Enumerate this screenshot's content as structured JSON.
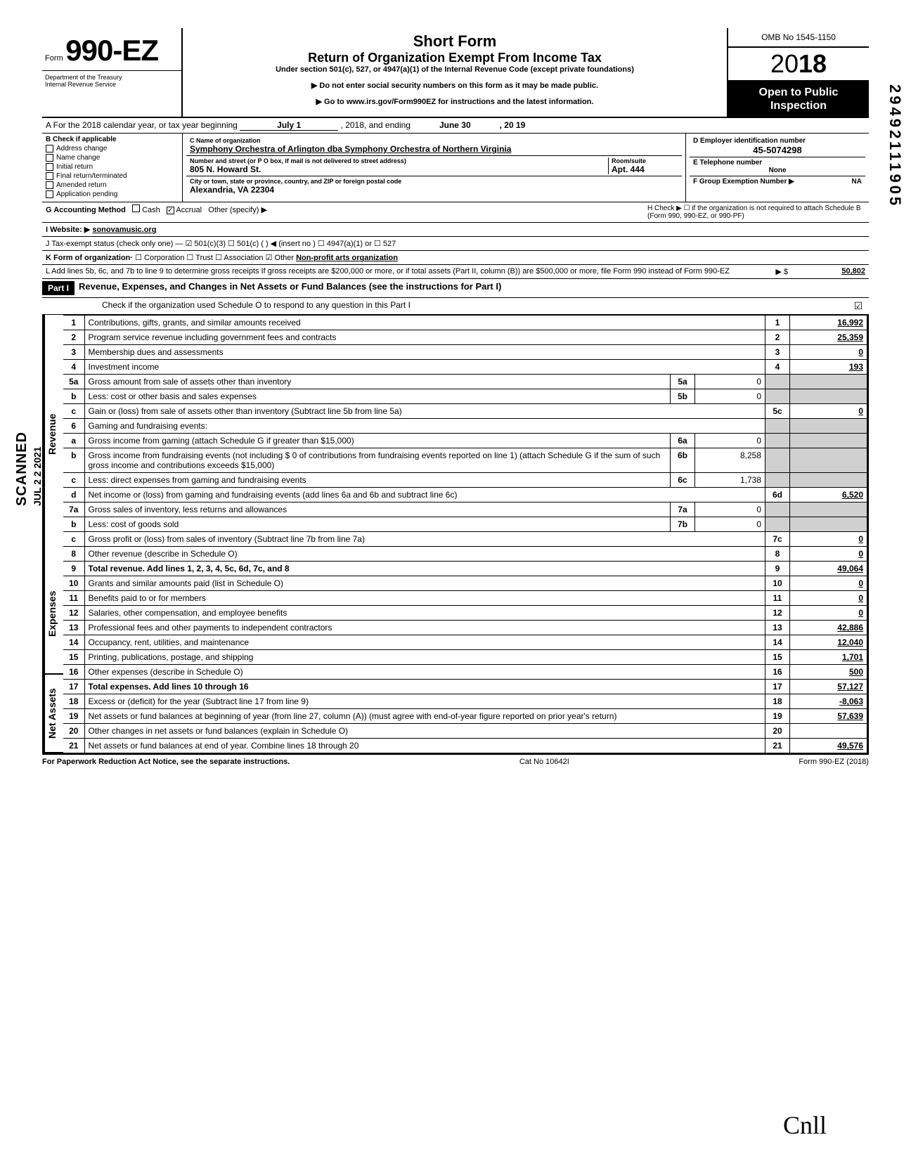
{
  "header": {
    "form_word": "Form",
    "form_number": "990-EZ",
    "title": "Short Form",
    "subtitle": "Return of Organization Exempt From Income Tax",
    "under": "Under section 501(c), 527, or 4947(a)(1) of the Internal Revenue Code (except private foundations)",
    "note1": "▶ Do not enter social security numbers on this form as it may be made public.",
    "note2": "▶ Go to www.irs.gov/Form990EZ for instructions and the latest information.",
    "dept": "Department of the Treasury\nInternal Revenue Service",
    "omb": "OMB No 1545-1150",
    "year_light": "20",
    "year_bold": "18",
    "open": "Open to Public Inspection"
  },
  "lineA": {
    "prefix": "A For the 2018 calendar year, or tax year beginning",
    "begin": "July 1",
    "mid": ", 2018, and ending",
    "end_month": "June 30",
    "end_year": ", 20   19"
  },
  "sectionB": {
    "header": "B Check if applicable",
    "items": [
      "Address change",
      "Name change",
      "Initial return",
      "Final return/terminated",
      "Amended return",
      "Application pending"
    ]
  },
  "entity": {
    "c_label": "C Name of organization",
    "name": "Symphony Orchestra of Arlington dba Symphony Orchestra of Northern Virginia",
    "addr_label": "Number and street (or P O box, if mail is not delivered to street address)",
    "street": "805 N. Howard St.",
    "room_label": "Room/suite",
    "room": "Apt. 444",
    "city_label": "City or town, state or province, country, and ZIP or foreign postal code",
    "city": "Alexandria, VA 22304"
  },
  "rightInfo": {
    "d_label": "D Employer identification number",
    "ein": "45-5074298",
    "e_label": "E Telephone number",
    "phone": "None",
    "f_label": "F Group Exemption Number ▶",
    "f_val": "NA"
  },
  "lineG": {
    "label": "G Accounting Method",
    "cash": "Cash",
    "accrual": "Accrual",
    "other": "Other (specify) ▶"
  },
  "lineH": "H Check ▶ ☐ if the organization is not required to attach Schedule B (Form 990, 990-EZ, or 990-PF)",
  "lineI": {
    "label": "I Website: ▶",
    "val": "sonovamusic.org"
  },
  "lineJ": "J Tax-exempt status (check only one) — ☑ 501(c)(3)   ☐ 501(c) (      ) ◀ (insert no ) ☐ 4947(a)(1) or   ☐ 527",
  "lineK": {
    "label": "K Form of organization·",
    "opts": "☐ Corporation   ☐ Trust   ☐ Association   ☑ Other",
    "other_val": "Non-profit arts organization"
  },
  "lineL": {
    "text": "L Add lines 5b, 6c, and 7b to line 9 to determine gross receipts  If gross receipts are $200,000 or more, or if total assets (Part II, column (B)) are $500,000 or more, file Form 990 instead of Form 990-EZ",
    "arrow": "▶  $",
    "val": "50,802"
  },
  "part1": {
    "label": "Part I",
    "title": "Revenue, Expenses, and Changes in Net Assets or Fund Balances (see the instructions for Part I)",
    "check": "Check if the organization used Schedule O to respond to any question in this Part I",
    "checked": "☑"
  },
  "sections": {
    "revenue": "Revenue",
    "expenses": "Expenses",
    "netassets": "Net Assets"
  },
  "lines": [
    {
      "n": "1",
      "d": "Contributions, gifts, grants, and similar amounts received",
      "box": "1",
      "v": "16,992"
    },
    {
      "n": "2",
      "d": "Program service revenue including government fees and contracts",
      "box": "2",
      "v": "25,359"
    },
    {
      "n": "3",
      "d": "Membership dues and assessments",
      "box": "3",
      "v": "0"
    },
    {
      "n": "4",
      "d": "Investment income",
      "box": "4",
      "v": "193"
    },
    {
      "n": "5a",
      "d": "Gross amount from sale of assets other than inventory",
      "mb": "5a",
      "mv": "0"
    },
    {
      "n": "b",
      "d": "Less: cost or other basis and sales expenses",
      "mb": "5b",
      "mv": "0"
    },
    {
      "n": "c",
      "d": "Gain or (loss) from sale of assets other than inventory (Subtract line 5b from line 5a)",
      "box": "5c",
      "v": "0"
    },
    {
      "n": "6",
      "d": "Gaming and fundraising events:"
    },
    {
      "n": "a",
      "d": "Gross income from gaming (attach Schedule G if greater than $15,000)",
      "mb": "6a",
      "mv": "0"
    },
    {
      "n": "b",
      "d": "Gross income from fundraising events (not including  $                0 of contributions from fundraising events reported on line 1) (attach Schedule G if the sum of such gross income and contributions exceeds $15,000)",
      "mb": "6b",
      "mv": "8,258"
    },
    {
      "n": "c",
      "d": "Less: direct expenses from gaming and fundraising events",
      "mb": "6c",
      "mv": "1,738"
    },
    {
      "n": "d",
      "d": "Net income or (loss) from gaming and fundraising events (add lines 6a and 6b and subtract line 6c)",
      "box": "6d",
      "v": "6,520"
    },
    {
      "n": "7a",
      "d": "Gross sales of inventory, less returns and allowances",
      "mb": "7a",
      "mv": "0"
    },
    {
      "n": "b",
      "d": "Less: cost of goods sold",
      "mb": "7b",
      "mv": "0"
    },
    {
      "n": "c",
      "d": "Gross profit or (loss) from sales of inventory (Subtract line 7b from line 7a)",
      "box": "7c",
      "v": "0"
    },
    {
      "n": "8",
      "d": "Other revenue (describe in Schedule O)",
      "box": "8",
      "v": "0"
    },
    {
      "n": "9",
      "d": "Total revenue. Add lines 1, 2, 3, 4, 5c, 6d, 7c, and 8",
      "box": "9",
      "v": "49,064",
      "bold": true
    },
    {
      "n": "10",
      "d": "Grants and similar amounts paid (list in Schedule O)",
      "box": "10",
      "v": "0"
    },
    {
      "n": "11",
      "d": "Benefits paid to or for members",
      "box": "11",
      "v": "0"
    },
    {
      "n": "12",
      "d": "Salaries, other compensation, and employee benefits",
      "box": "12",
      "v": "0"
    },
    {
      "n": "13",
      "d": "Professional fees and other payments to independent contractors",
      "box": "13",
      "v": "42,886"
    },
    {
      "n": "14",
      "d": "Occupancy, rent, utilities, and maintenance",
      "box": "14",
      "v": "12,040"
    },
    {
      "n": "15",
      "d": "Printing, publications, postage, and shipping",
      "box": "15",
      "v": "1,701"
    },
    {
      "n": "16",
      "d": "Other expenses (describe in Schedule O)",
      "box": "16",
      "v": "500"
    },
    {
      "n": "17",
      "d": "Total expenses. Add lines 10 through 16",
      "box": "17",
      "v": "57,127",
      "bold": true
    },
    {
      "n": "18",
      "d": "Excess or (deficit) for the year (Subtract line 17 from line 9)",
      "box": "18",
      "v": "-8,063"
    },
    {
      "n": "19",
      "d": "Net assets or fund balances at beginning of year (from line 27, column (A)) (must agree with end-of-year figure reported on prior year's return)",
      "box": "19",
      "v": "57,639"
    },
    {
      "n": "20",
      "d": "Other changes in net assets or fund balances (explain in Schedule O)",
      "box": "20",
      "v": ""
    },
    {
      "n": "21",
      "d": "Net assets or fund balances at end of year. Combine lines 18 through 20",
      "box": "21",
      "v": "49,576"
    }
  ],
  "footer": {
    "left": "For Paperwork Reduction Act Notice, see the separate instructions.",
    "mid": "Cat No 10642I",
    "right": "Form 990-EZ (2018)"
  },
  "stamps": {
    "scanned": "SCANNED",
    "date": "JUL 2 2 2021",
    "margin": "29492111905",
    "hand": "Cnll"
  }
}
